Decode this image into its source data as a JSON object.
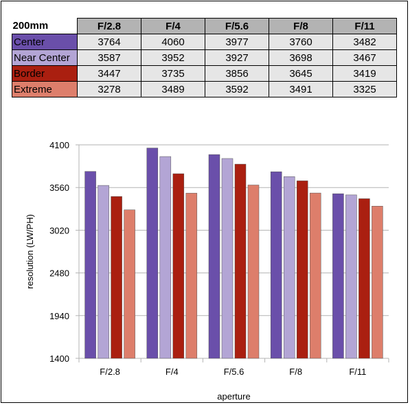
{
  "table": {
    "lens_label": "200mm",
    "apertures": [
      "F/2.8",
      "F/4",
      "F/5.6",
      "F/8",
      "F/11"
    ],
    "rows": [
      {
        "label": "Center",
        "color": "#6a4faa",
        "values": [
          "3764",
          "4060",
          "3977",
          "3760",
          "3482"
        ]
      },
      {
        "label": "Near Center",
        "color": "#b3a5d5",
        "values": [
          "3587",
          "3952",
          "3927",
          "3698",
          "3467"
        ]
      },
      {
        "label": "Border",
        "color": "#aa1f10",
        "values": [
          "3447",
          "3735",
          "3856",
          "3645",
          "3419"
        ]
      },
      {
        "label": "Extreme",
        "color": "#dd7e6b",
        "values": [
          "3278",
          "3489",
          "3592",
          "3491",
          "3325"
        ]
      }
    ]
  },
  "chart_data": {
    "type": "bar",
    "categories": [
      "F/2.8",
      "F/4",
      "F/5.6",
      "F/8",
      "F/11"
    ],
    "series": [
      {
        "name": "Center",
        "color": "#6a4faa",
        "values": [
          3764,
          4060,
          3977,
          3760,
          3482
        ]
      },
      {
        "name": "Near Center",
        "color": "#b3a5d5",
        "values": [
          3587,
          3952,
          3927,
          3698,
          3467
        ]
      },
      {
        "name": "Border",
        "color": "#aa1f10",
        "values": [
          3447,
          3735,
          3856,
          3645,
          3419
        ]
      },
      {
        "name": "Extreme",
        "color": "#dd7e6b",
        "values": [
          3278,
          3489,
          3592,
          3491,
          3325
        ]
      }
    ],
    "title": "",
    "xlabel": "aperture",
    "ylabel": "resolution (LW/PH)",
    "ylim": [
      1400,
      4100
    ],
    "yticks": [
      1400,
      1940,
      2480,
      3020,
      3560,
      4100
    ],
    "grid": true,
    "legend": "none"
  }
}
